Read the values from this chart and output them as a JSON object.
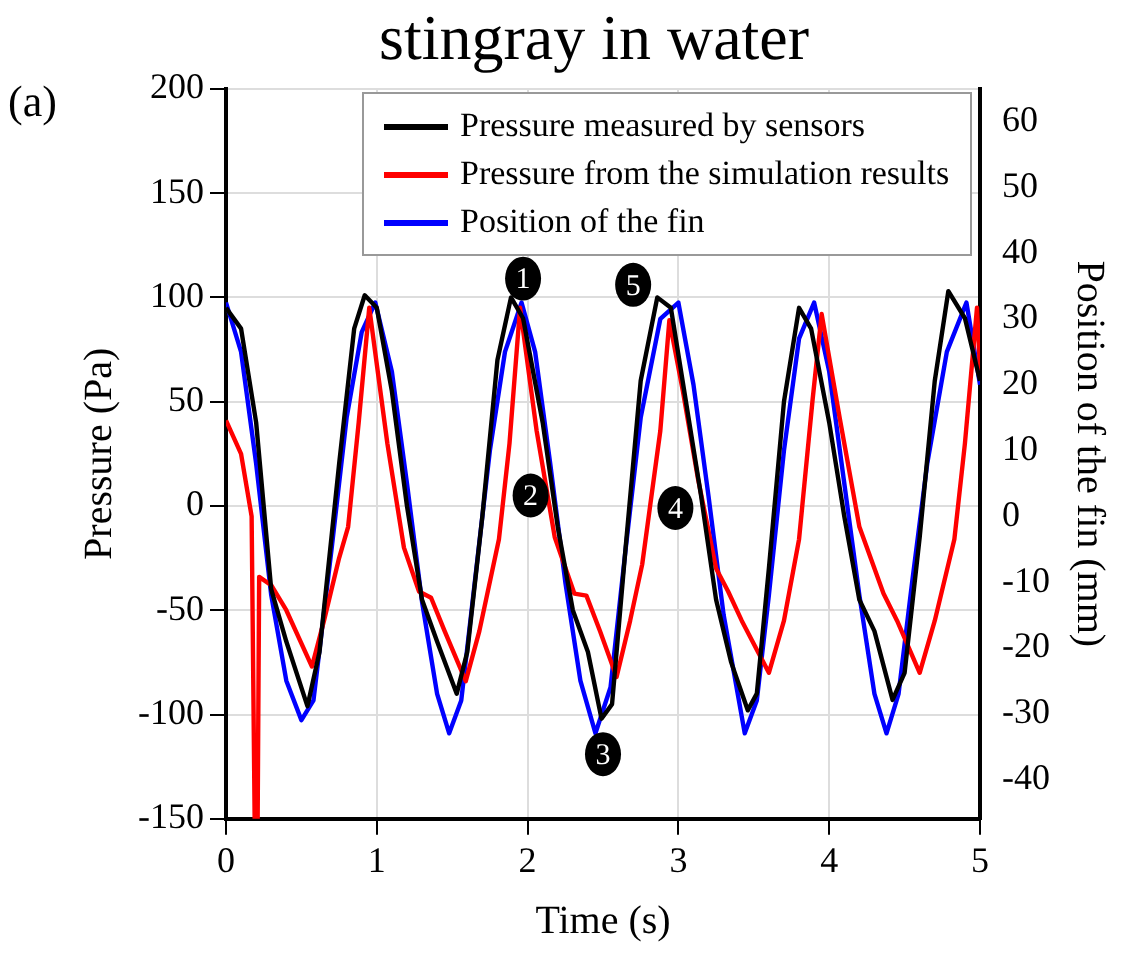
{
  "chart_data": {
    "type": "line",
    "title": "stingray in water",
    "xlabel": "Time (s)",
    "ylabel": "Pressure (Pa)",
    "y2label": "Position of the fin (mm)",
    "xlim": [
      0,
      5
    ],
    "xticks": [
      0,
      1,
      2,
      3,
      4,
      5
    ],
    "ylim": [
      -150,
      200
    ],
    "yticks": [
      -150,
      -100,
      -50,
      0,
      50,
      100,
      150,
      200
    ],
    "y2lim": [
      -46,
      65
    ],
    "y2ticks": [
      -40,
      -30,
      -20,
      -10,
      0,
      10,
      20,
      30,
      40,
      50,
      60
    ],
    "grid": true,
    "legend": "top right",
    "marker": "none",
    "line_style": "solid",
    "annotations": [
      "(a)",
      {
        "text": "1",
        "x": 1.97,
        "y": 109
      },
      {
        "text": "2",
        "x": 2.02,
        "y": 5
      },
      {
        "text": "3",
        "x": 2.5,
        "y": -119
      },
      {
        "text": "4",
        "x": 2.98,
        "y": -1
      },
      {
        "text": "5",
        "x": 2.7,
        "y": 106
      }
    ],
    "series": [
      {
        "name": "Pressure measured by sensors",
        "color": "#000000",
        "x": [
          0,
          0.1,
          0.2,
          0.3,
          0.4,
          0.54,
          0.62,
          0.75,
          0.85,
          0.92,
          1.0,
          1.1,
          1.2,
          1.3,
          1.4,
          1.53,
          1.6,
          1.7,
          1.8,
          1.89,
          1.97,
          2.1,
          2.2,
          2.3,
          2.4,
          2.49,
          2.56,
          2.65,
          2.75,
          2.86,
          2.95,
          3.05,
          3.15,
          3.25,
          3.35,
          3.46,
          3.52,
          3.6,
          3.7,
          3.8,
          3.88,
          4.0,
          4.1,
          4.2,
          4.3,
          4.42,
          4.5,
          4.6,
          4.7,
          4.79,
          4.9,
          5
        ],
        "values": [
          95,
          85,
          40,
          -40,
          -65,
          -96,
          -70,
          20,
          85,
          101,
          95,
          55,
          0,
          -45,
          -65,
          -90,
          -70,
          -5,
          70,
          100,
          90,
          40,
          -10,
          -50,
          -70,
          -102,
          -95,
          -20,
          60,
          100,
          95,
          50,
          5,
          -45,
          -75,
          -98,
          -90,
          -30,
          50,
          95,
          85,
          40,
          -5,
          -45,
          -60,
          -93,
          -80,
          -15,
          60,
          103,
          90,
          60
        ]
      },
      {
        "name": "Pressure from the simulation results",
        "color": "#ff0000",
        "x": [
          0,
          0.1,
          0.17,
          0.19,
          0.21,
          0.22,
          0.3,
          0.4,
          0.57,
          0.65,
          0.75,
          0.81,
          0.88,
          0.95,
          1.07,
          1.18,
          1.28,
          1.36,
          1.45,
          1.59,
          1.68,
          1.81,
          1.88,
          1.95,
          2.06,
          2.18,
          2.31,
          2.39,
          2.48,
          2.59,
          2.68,
          2.76,
          2.88,
          2.94,
          3.03,
          3.13,
          3.25,
          3.33,
          3.42,
          3.6,
          3.7,
          3.8,
          3.89,
          3.95,
          4.07,
          4.2,
          4.36,
          4.45,
          4.6,
          4.7,
          4.83,
          4.9,
          4.98,
          5
        ],
        "values": [
          41,
          25,
          -5,
          -150,
          -150,
          -34,
          -38,
          -50,
          -77,
          -55,
          -25,
          -10,
          40,
          95,
          30,
          -20,
          -41,
          -44,
          -60,
          -84,
          -60,
          -16,
          30,
          95,
          36,
          -15,
          -42,
          -43,
          -60,
          -82,
          -55,
          -28,
          36,
          89,
          55,
          13,
          -30,
          -41,
          -55,
          -80,
          -55,
          -16,
          51,
          92,
          42,
          -10,
          -42,
          -55,
          -80,
          -55,
          -16,
          30,
          95,
          65
        ]
      },
      {
        "name": "Position of the fin",
        "color": "#0000ff",
        "axis": "y2",
        "x": [
          0,
          0.1,
          0.2,
          0.3,
          0.4,
          0.5,
          0.58,
          0.7,
          0.8,
          0.9,
          0.99,
          1.1,
          1.2,
          1.3,
          1.4,
          1.48,
          1.56,
          1.65,
          1.75,
          1.85,
          1.96,
          2.05,
          2.15,
          2.25,
          2.35,
          2.45,
          2.55,
          2.65,
          2.75,
          2.88,
          3.0,
          3.1,
          3.2,
          3.3,
          3.44,
          3.52,
          3.6,
          3.7,
          3.8,
          3.9,
          4.0,
          4.1,
          4.2,
          4.3,
          4.38,
          4.46,
          4.55,
          4.65,
          4.78,
          4.91,
          5
        ],
        "values": [
          32.5,
          25,
          8,
          -12,
          -25,
          -31,
          -28,
          -5,
          15,
          28,
          32.5,
          22,
          5,
          -13,
          -27,
          -33,
          -28,
          -10,
          10,
          25,
          32.5,
          25,
          8,
          -10,
          -25,
          -33,
          -26,
          -5,
          15,
          30,
          32.5,
          20,
          3,
          -15,
          -33,
          -28,
          -12,
          10,
          27,
          32.5,
          22,
          5,
          -12,
          -27,
          -33,
          -27,
          -10,
          8,
          25,
          32.5,
          20
        ]
      }
    ]
  }
}
